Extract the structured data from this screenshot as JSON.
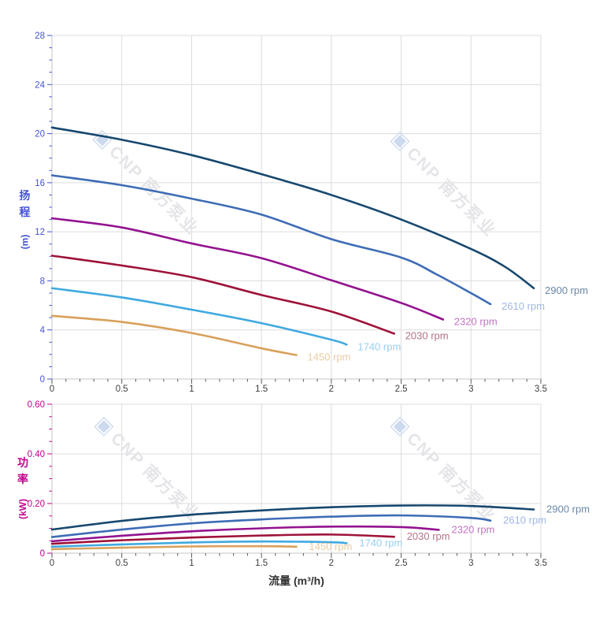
{
  "xlabel": "流量 (m³/h)",
  "watermark": {
    "logo_icon": "▣",
    "text": "CNP 南方泵业",
    "color": "#e5e5e9",
    "logo_color": "#ccd9ee"
  },
  "style": {
    "gridline_color": "#dcdcdc",
    "axis_line_color": "#c6c6c6",
    "x_tick_color": "#595959",
    "x_label_color": "#3d3d3d",
    "background": "#ffffff"
  },
  "chart_data": [
    {
      "type": "line",
      "name": "head-vs-flow",
      "title": "",
      "ylabel": "扬程 (m)",
      "y_title": {
        "line1": "扬",
        "line2": "程",
        "unit": "(m)"
      },
      "xlabel": "流量 (m³/h)",
      "axis_color": "#4452d4",
      "grid": true,
      "legend_position": "end-of-curve",
      "x_axis": {
        "min": 0,
        "max": 3.5,
        "major_step": 0.5,
        "minor_step": 0.1,
        "tick_labels": [
          "0",
          "0.5",
          "1",
          "1.5",
          "2",
          "2.5",
          "3",
          "3.5"
        ]
      },
      "y_axis": {
        "min": 0,
        "max": 28,
        "major_step": 4,
        "minor_step": 1,
        "tick_labels": [
          "0",
          "4",
          "8",
          "12",
          "16",
          "20",
          "24",
          "28"
        ]
      },
      "series": [
        {
          "name": "2900 rpm",
          "color": "#17486f",
          "label_color": "#6a87a8",
          "points": [
            [
              0,
              20.5
            ],
            [
              0.5,
              19.5
            ],
            [
              1,
              18.25
            ],
            [
              1.5,
              16.7
            ],
            [
              2,
              15.0
            ],
            [
              2.5,
              13.0
            ],
            [
              3,
              10.6
            ],
            [
              3.25,
              9.1
            ],
            [
              3.45,
              7.4
            ]
          ]
        },
        {
          "name": "2610 rpm",
          "color": "#3e6cb5",
          "label_color": "#9fb6e2",
          "points": [
            [
              0,
              16.6
            ],
            [
              0.5,
              15.8
            ],
            [
              1,
              14.7
            ],
            [
              1.5,
              13.4
            ],
            [
              2,
              11.4
            ],
            [
              2.5,
              9.9
            ],
            [
              2.75,
              8.55
            ],
            [
              3,
              7.0
            ],
            [
              3.14,
              6.1
            ]
          ]
        },
        {
          "name": "2320 rpm",
          "color": "#93128f",
          "label_color": "#c273c4",
          "points": [
            [
              0,
              13.1
            ],
            [
              0.5,
              12.35
            ],
            [
              1,
              11.05
            ],
            [
              1.5,
              9.85
            ],
            [
              2,
              8.05
            ],
            [
              2.5,
              6.2
            ],
            [
              2.8,
              4.85
            ]
          ]
        },
        {
          "name": "2030 rpm",
          "color": "#9e1239",
          "label_color": "#b27389",
          "points": [
            [
              0,
              10.05
            ],
            [
              0.5,
              9.25
            ],
            [
              1,
              8.3
            ],
            [
              1.5,
              6.85
            ],
            [
              2,
              5.5
            ],
            [
              2.45,
              3.7
            ]
          ]
        },
        {
          "name": "1740 rpm",
          "color": "#3fa9e0",
          "label_color": "#97cff0",
          "points": [
            [
              0,
              7.4
            ],
            [
              0.5,
              6.65
            ],
            [
              1,
              5.65
            ],
            [
              1.5,
              4.55
            ],
            [
              2,
              3.2
            ],
            [
              2.11,
              2.8
            ]
          ]
        },
        {
          "name": "1450 rpm",
          "color": "#d9a05b",
          "label_color": "#eacba0",
          "points": [
            [
              0,
              5.15
            ],
            [
              0.5,
              4.65
            ],
            [
              1,
              3.75
            ],
            [
              1.5,
              2.5
            ],
            [
              1.75,
              1.95
            ]
          ]
        }
      ]
    },
    {
      "type": "line",
      "name": "power-vs-flow",
      "title": "",
      "ylabel": "功率 (kW)",
      "y_title": {
        "line1": "功",
        "line2": "率",
        "unit": "(kW)"
      },
      "xlabel": "流量 (m³/h)",
      "axis_color": "#c2008f",
      "grid": true,
      "legend_position": "end-of-curve",
      "x_axis": {
        "min": 0,
        "max": 3.5,
        "major_step": 0.5,
        "minor_step": 0.1,
        "tick_labels": [
          "0",
          "0.5",
          "1",
          "1.5",
          "2",
          "2.5",
          "3",
          "3.5"
        ]
      },
      "y_axis": {
        "min": 0,
        "max": 0.6,
        "major_step": 0.2,
        "minor_step": 0.05,
        "tick_labels": [
          "0",
          "0.20",
          "0.40",
          "0.60"
        ]
      },
      "series": [
        {
          "name": "2900 rpm",
          "color": "#17486f",
          "label_color": "#6a87a8",
          "points": [
            [
              0,
              0.095
            ],
            [
              0.5,
              0.13
            ],
            [
              1,
              0.155
            ],
            [
              1.5,
              0.172
            ],
            [
              2,
              0.185
            ],
            [
              2.5,
              0.192
            ],
            [
              3,
              0.19
            ],
            [
              3.45,
              0.176
            ]
          ]
        },
        {
          "name": "2610 rpm",
          "color": "#3e6cb5",
          "label_color": "#9fb6e2",
          "points": [
            [
              0,
              0.065
            ],
            [
              0.5,
              0.095
            ],
            [
              1,
              0.12
            ],
            [
              1.5,
              0.136
            ],
            [
              2,
              0.147
            ],
            [
              2.5,
              0.152
            ],
            [
              3,
              0.142
            ],
            [
              3.14,
              0.131
            ]
          ]
        },
        {
          "name": "2320 rpm",
          "color": "#93128f",
          "label_color": "#c273c4",
          "points": [
            [
              0,
              0.048
            ],
            [
              0.5,
              0.07
            ],
            [
              1,
              0.088
            ],
            [
              1.5,
              0.1
            ],
            [
              2,
              0.107
            ],
            [
              2.5,
              0.105
            ],
            [
              2.77,
              0.094
            ]
          ]
        },
        {
          "name": "2030 rpm",
          "color": "#9e1239",
          "label_color": "#b27389",
          "points": [
            [
              0,
              0.038
            ],
            [
              0.5,
              0.052
            ],
            [
              1,
              0.063
            ],
            [
              1.5,
              0.071
            ],
            [
              2,
              0.075
            ],
            [
              2.45,
              0.066
            ]
          ]
        },
        {
          "name": "1740 rpm",
          "color": "#3fa9e0",
          "label_color": "#97cff0",
          "points": [
            [
              0,
              0.026
            ],
            [
              0.5,
              0.035
            ],
            [
              1,
              0.043
            ],
            [
              1.5,
              0.047
            ],
            [
              2,
              0.044
            ],
            [
              2.11,
              0.04
            ]
          ]
        },
        {
          "name": "1450 rpm",
          "color": "#d9a05b",
          "label_color": "#eacba0",
          "points": [
            [
              0,
              0.016
            ],
            [
              0.5,
              0.022
            ],
            [
              1,
              0.027
            ],
            [
              1.5,
              0.028
            ],
            [
              1.75,
              0.026
            ]
          ]
        }
      ]
    }
  ]
}
